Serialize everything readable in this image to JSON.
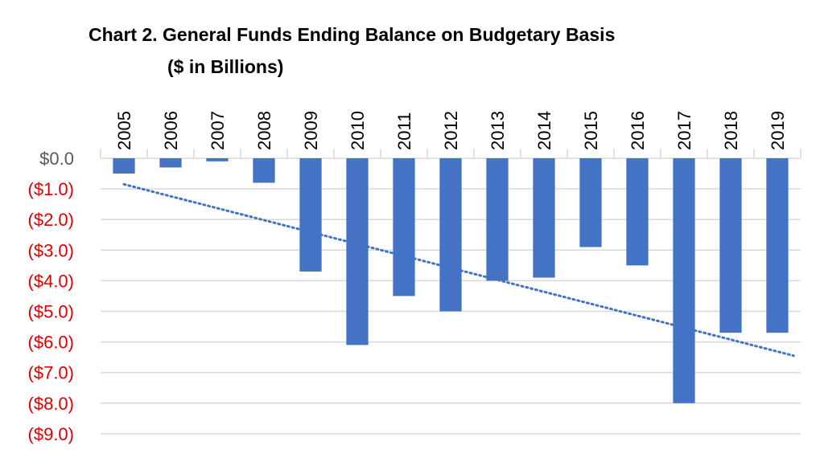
{
  "chart_data": {
    "type": "bar",
    "title": "Chart 2. General Funds Ending Balance on Budgetary Basis",
    "subtitle": "($ in Billions)",
    "categories": [
      "2005",
      "2006",
      "2007",
      "2008",
      "2009",
      "2010",
      "2011",
      "2012",
      "2013",
      "2014",
      "2015",
      "2016",
      "2017",
      "2018",
      "2019"
    ],
    "values": [
      -0.5,
      -0.3,
      -0.1,
      -0.8,
      -3.7,
      -6.1,
      -4.5,
      -5.0,
      -4.0,
      -3.9,
      -2.9,
      -3.5,
      -8.0,
      -5.7,
      -5.7
    ],
    "ylim": [
      -9.0,
      0.0
    ],
    "ytick_values": [
      0,
      -1,
      -2,
      -3,
      -4,
      -5,
      -6,
      -7,
      -8,
      -9
    ],
    "ytick_labels": [
      "$0.0",
      "($1.0)",
      "($2.0)",
      "($3.0)",
      "($4.0)",
      "($5.0)",
      "($6.0)",
      "($7.0)",
      "($8.0)",
      "($9.0)"
    ],
    "trendline": {
      "type": "linear",
      "style": "dotted",
      "start": -0.85,
      "end": -6.45
    },
    "xaxis_position": "top",
    "xtick_rotation": "vertical",
    "grid": "horizontal",
    "legend": "none",
    "colors": {
      "bar": "#4472C4",
      "trendline": "#4472C4",
      "grid": "#d9d9d9",
      "ytick_positive": "#595959",
      "ytick_negative": "#E00000"
    }
  }
}
